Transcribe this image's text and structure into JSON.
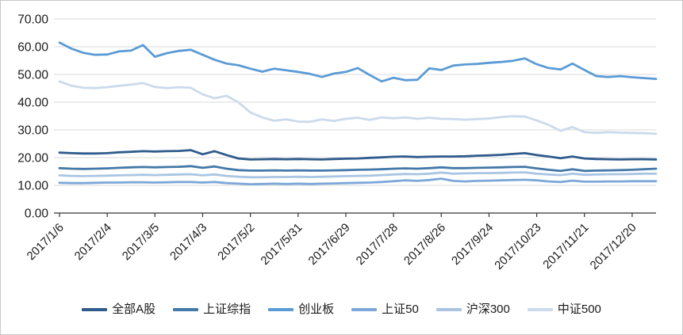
{
  "figure": {
    "background": "#ffffff",
    "border_color": "#c9c9c9",
    "gridline_color": "#d9d9d9",
    "axis_color": "#333333",
    "text_color": "#1a1a1a"
  },
  "chart_data": {
    "type": "line",
    "title": "",
    "xlabel": "",
    "ylabel": "",
    "grid": true,
    "legend_position": "bottom",
    "ylim": [
      0,
      70
    ],
    "y_ticks": [
      0,
      10,
      20,
      30,
      40,
      50,
      60,
      70
    ],
    "y_tick_labels": [
      "0.00",
      "10.00",
      "20.00",
      "30.00",
      "40.00",
      "50.00",
      "60.00",
      "70.00"
    ],
    "x_tick_labels": [
      "2017/1/6",
      "2017/2/4",
      "2017/3/5",
      "2017/4/3",
      "2017/5/2",
      "2017/5/31",
      "2017/6/29",
      "2017/7/28",
      "2017/8/26",
      "2017/9/24",
      "2017/10/23",
      "2017/11/21",
      "2017/12/20"
    ],
    "x_label_every": 4,
    "points_per_series": 51,
    "series": [
      {
        "name": "全部A股",
        "color": "#2F5B8D",
        "values": [
          21.8,
          21.6,
          21.5,
          21.5,
          21.6,
          21.9,
          22.1,
          22.3,
          22.2,
          22.3,
          22.4,
          22.7,
          21.2,
          22.3,
          20.9,
          19.7,
          19.3,
          19.4,
          19.5,
          19.4,
          19.5,
          19.4,
          19.3,
          19.5,
          19.6,
          19.7,
          19.9,
          20.1,
          20.3,
          20.4,
          20.2,
          20.3,
          20.4,
          20.4,
          20.5,
          20.7,
          20.8,
          21.0,
          21.3,
          21.6,
          20.9,
          20.4,
          19.8,
          20.4,
          19.7,
          19.5,
          19.4,
          19.3,
          19.4,
          19.4,
          19.3
        ]
      },
      {
        "name": "上证综指",
        "color": "#4378A8",
        "values": [
          16.2,
          16.0,
          15.9,
          16.0,
          16.1,
          16.3,
          16.5,
          16.6,
          16.5,
          16.6,
          16.7,
          16.9,
          16.3,
          16.8,
          16.0,
          15.5,
          15.3,
          15.3,
          15.4,
          15.3,
          15.4,
          15.3,
          15.3,
          15.4,
          15.5,
          15.6,
          15.7,
          15.8,
          16.0,
          16.1,
          16.0,
          16.2,
          16.5,
          16.2,
          16.2,
          16.3,
          16.4,
          16.5,
          16.6,
          16.7,
          16.1,
          15.6,
          15.2,
          15.8,
          15.2,
          15.3,
          15.4,
          15.5,
          15.6,
          15.8,
          16.0
        ]
      },
      {
        "name": "创业板",
        "color": "#5B9BD5",
        "values": [
          61.5,
          59.3,
          57.8,
          57.1,
          57.2,
          58.3,
          58.6,
          60.6,
          56.4,
          57.7,
          58.5,
          58.9,
          57.1,
          55.3,
          53.9,
          53.3,
          52.1,
          51.0,
          52.1,
          51.5,
          50.9,
          50.2,
          49.1,
          50.3,
          50.9,
          52.3,
          49.8,
          47.5,
          48.8,
          47.9,
          48.1,
          52.2,
          51.6,
          53.2,
          53.6,
          53.8,
          54.2,
          54.5,
          54.9,
          55.8,
          53.7,
          52.3,
          51.8,
          53.9,
          51.6,
          49.4,
          49.1,
          49.4,
          49.0,
          48.7,
          48.4
        ]
      },
      {
        "name": "上证50",
        "color": "#7CA7D8",
        "values": [
          10.9,
          10.8,
          10.8,
          10.9,
          11.0,
          11.0,
          11.1,
          11.1,
          11.0,
          11.1,
          11.2,
          11.2,
          11.0,
          11.2,
          10.8,
          10.6,
          10.4,
          10.5,
          10.6,
          10.5,
          10.6,
          10.5,
          10.6,
          10.7,
          10.8,
          10.9,
          11.0,
          11.2,
          11.5,
          11.8,
          11.6,
          11.9,
          12.4,
          11.6,
          11.4,
          11.6,
          11.7,
          11.8,
          11.9,
          12.0,
          11.8,
          11.4,
          11.2,
          11.7,
          11.3,
          11.3,
          11.4,
          11.4,
          11.5,
          11.5,
          11.5
        ]
      },
      {
        "name": "沪深300",
        "color": "#A9C5E3",
        "values": [
          13.6,
          13.4,
          13.3,
          13.4,
          13.5,
          13.6,
          13.7,
          13.8,
          13.7,
          13.8,
          13.9,
          14.0,
          13.6,
          13.9,
          13.4,
          13.1,
          12.9,
          12.9,
          13.0,
          13.0,
          13.1,
          13.0,
          13.1,
          13.2,
          13.3,
          13.4,
          13.5,
          13.7,
          13.9,
          14.1,
          14.0,
          14.2,
          14.6,
          14.2,
          14.3,
          14.4,
          14.4,
          14.5,
          14.6,
          14.7,
          14.2,
          13.9,
          13.7,
          14.2,
          13.8,
          13.9,
          14.0,
          14.0,
          14.1,
          14.2,
          14.2
        ]
      },
      {
        "name": "中证500",
        "color": "#CBDAEC",
        "values": [
          47.5,
          45.9,
          45.2,
          45.1,
          45.4,
          45.9,
          46.3,
          46.9,
          45.5,
          45.1,
          45.4,
          45.2,
          42.8,
          41.4,
          42.3,
          39.9,
          36.3,
          34.5,
          33.3,
          33.8,
          33.0,
          32.9,
          33.8,
          33.2,
          34.0,
          34.4,
          33.6,
          34.5,
          34.2,
          34.5,
          34.0,
          34.4,
          34.0,
          33.9,
          33.7,
          33.9,
          34.1,
          34.6,
          34.9,
          34.8,
          33.4,
          31.8,
          29.7,
          31.0,
          29.2,
          28.9,
          29.2,
          29.0,
          28.9,
          28.8,
          28.6
        ]
      }
    ]
  }
}
